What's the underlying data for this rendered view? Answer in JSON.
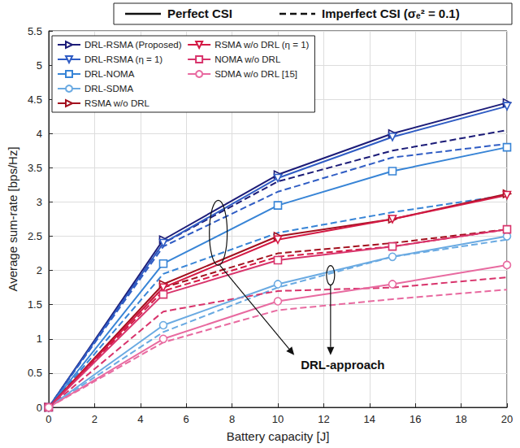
{
  "chart_data": {
    "type": "line",
    "x_label": "Battery capacity [J]",
    "y_label": "Average sum-rate [bps/Hz]",
    "x": [
      0,
      5,
      10,
      15,
      20
    ],
    "xlim": [
      0,
      20
    ],
    "xticks": [
      0,
      2,
      4,
      6,
      8,
      10,
      12,
      14,
      16,
      18,
      20
    ],
    "ylim": [
      0,
      5.5
    ],
    "yticks": [
      0,
      0.5,
      1,
      1.5,
      2,
      2.5,
      3,
      3.5,
      4,
      4.5,
      5,
      5.5
    ],
    "grid": true,
    "legend": "upper left",
    "csi_legend": [
      {
        "name": "Perfect CSI",
        "line_style": "solid"
      },
      {
        "name": "Imperfect CSI (σₑ² = 0.1)",
        "line_style": "dashed"
      }
    ],
    "annotation": "DRL-approach",
    "series": [
      {
        "name": "DRL-RSMA (Proposed)",
        "color": "#1c1c78",
        "marker": "triangle-right",
        "values": [
          0,
          2.45,
          3.4,
          4.0,
          4.45
        ],
        "imperfect_values": [
          0,
          2.4,
          3.3,
          3.75,
          4.05
        ]
      },
      {
        "name": "DRL-RSMA (η = 1)",
        "color": "#2f5cc4",
        "marker": "triangle-down",
        "values": [
          0,
          2.4,
          3.35,
          3.95,
          4.4
        ],
        "imperfect_values": [
          0,
          2.35,
          3.15,
          3.65,
          3.85
        ]
      },
      {
        "name": "DRL-NOMA",
        "color": "#3784d6",
        "marker": "square",
        "values": [
          0,
          2.1,
          2.95,
          3.45,
          3.8
        ],
        "imperfect_values": [
          0,
          1.95,
          2.55,
          2.85,
          3.1
        ]
      },
      {
        "name": "DRL-SDMA",
        "color": "#6aaae2",
        "marker": "circle",
        "values": [
          0,
          1.2,
          1.8,
          2.2,
          2.5
        ],
        "imperfect_values": [
          0,
          1.1,
          1.75,
          2.2,
          2.45
        ]
      },
      {
        "name": "RSMA w/o DRL",
        "color": "#a3101e",
        "marker": "triangle-right",
        "values": [
          0,
          1.8,
          2.5,
          2.75,
          3.12
        ],
        "imperfect_values": [
          0,
          1.75,
          2.25,
          2.4,
          2.6
        ]
      },
      {
        "name": "RSMA w/o DRL (η = 1)",
        "color": "#d41a45",
        "marker": "triangle-down",
        "values": [
          0,
          1.75,
          2.45,
          2.75,
          3.1
        ],
        "imperfect_values": [
          0,
          1.7,
          2.2,
          2.35,
          2.6
        ]
      },
      {
        "name": "NOMA w/o DRL",
        "color": "#d8336b",
        "marker": "square",
        "values": [
          0,
          1.65,
          2.15,
          2.35,
          2.6
        ],
        "imperfect_values": [
          0,
          1.4,
          1.7,
          1.75,
          1.9
        ]
      },
      {
        "name": "SDMA w/o DRL [15]",
        "color": "#e86aa0",
        "marker": "circle",
        "values": [
          0,
          1.0,
          1.55,
          1.8,
          2.08
        ],
        "imperfect_values": [
          0,
          0.95,
          1.42,
          1.58,
          1.72
        ]
      }
    ]
  }
}
